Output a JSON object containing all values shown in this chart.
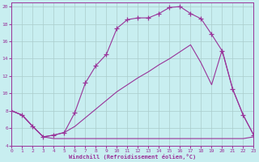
{
  "xlabel": "Windchill (Refroidissement éolien,°C)",
  "xlim": [
    0,
    23
  ],
  "ylim": [
    4,
    20.5
  ],
  "yticks": [
    4,
    6,
    8,
    10,
    12,
    14,
    16,
    18,
    20
  ],
  "xticks": [
    0,
    1,
    2,
    3,
    4,
    5,
    6,
    7,
    8,
    9,
    10,
    11,
    12,
    13,
    14,
    15,
    16,
    17,
    18,
    19,
    20,
    21,
    22,
    23
  ],
  "bg_color": "#c8eef0",
  "line_color": "#993399",
  "grid_color": "#aacccc",
  "line_flat_x": [
    0,
    1,
    2,
    3,
    4,
    5,
    6,
    7,
    8,
    9,
    10,
    11,
    12,
    13,
    14,
    15,
    16,
    17,
    18,
    19,
    20,
    21,
    22,
    23
  ],
  "line_flat_y": [
    8.0,
    7.5,
    6.2,
    5.0,
    4.8,
    4.8,
    4.8,
    4.8,
    4.8,
    4.8,
    4.8,
    4.8,
    4.8,
    4.8,
    4.8,
    4.8,
    4.8,
    4.8,
    4.8,
    4.8,
    4.8,
    4.8,
    4.8,
    5.0
  ],
  "line_diag_x": [
    0,
    1,
    2,
    3,
    4,
    5,
    6,
    7,
    8,
    9,
    10,
    11,
    12,
    13,
    14,
    15,
    16,
    17,
    18,
    19,
    20,
    21,
    22,
    23
  ],
  "line_diag_y": [
    8.0,
    7.5,
    6.2,
    5.0,
    5.2,
    5.5,
    6.2,
    7.2,
    8.2,
    9.2,
    10.2,
    11.0,
    11.8,
    12.5,
    13.3,
    14.0,
    14.8,
    15.6,
    13.5,
    11.0,
    15.0,
    10.5,
    7.5,
    5.2
  ],
  "line_curve_x": [
    0,
    1,
    2,
    3,
    4,
    5,
    6,
    7,
    8,
    9,
    10,
    11,
    12,
    13,
    14,
    15,
    16,
    17,
    18,
    19,
    20,
    21,
    22,
    23
  ],
  "line_curve_y": [
    8.0,
    7.5,
    6.2,
    5.0,
    5.2,
    5.5,
    7.8,
    11.2,
    13.2,
    14.5,
    17.5,
    18.5,
    18.7,
    18.7,
    19.2,
    19.9,
    20.0,
    19.2,
    18.6,
    16.8,
    14.9,
    10.5,
    7.5,
    5.2
  ]
}
